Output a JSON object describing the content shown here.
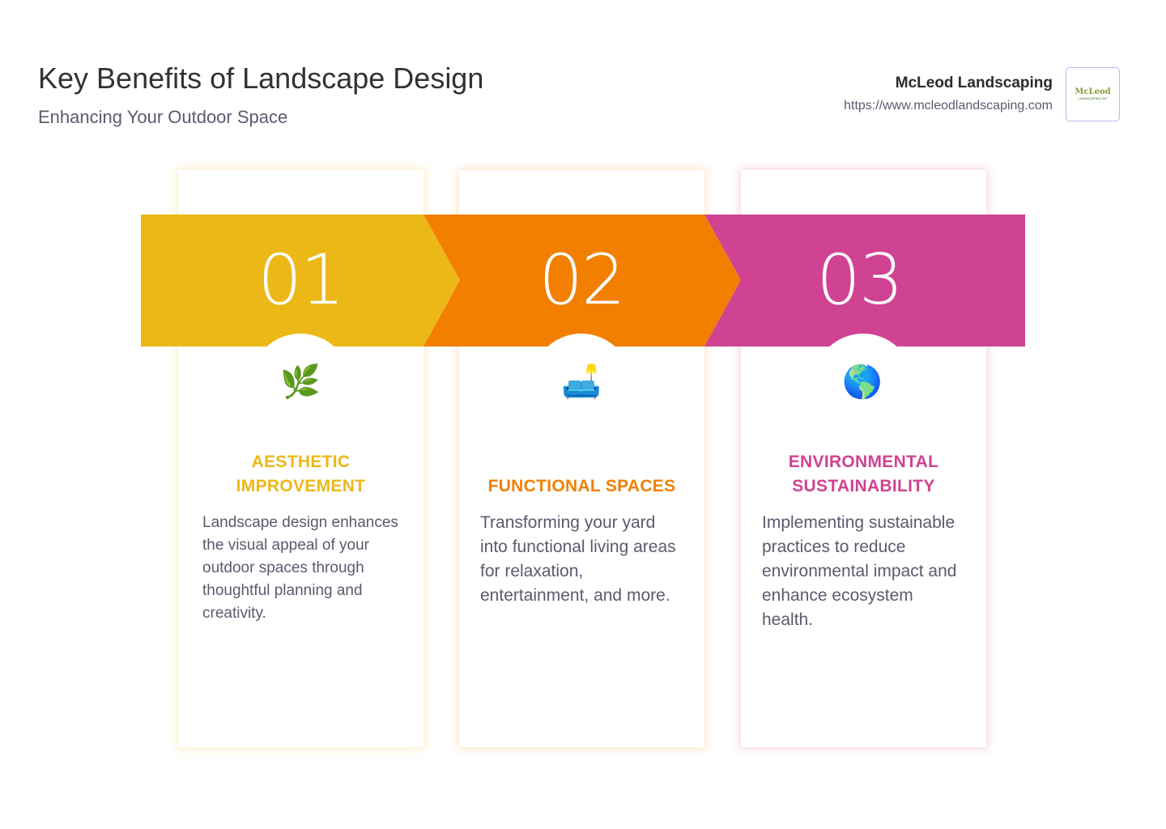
{
  "header": {
    "title": "Key Benefits of Landscape Design",
    "subtitle": "Enhancing Your Outdoor Space"
  },
  "brand": {
    "name": "McLeod Landscaping",
    "url": "https://www.mcleodlandscaping.com",
    "logo_text": "McLeod",
    "logo_subtext": "LANDSCAPING INC"
  },
  "colors": {
    "yellow": "#EBB818",
    "orange": "#F27F00",
    "magenta": "#D04292"
  },
  "items": [
    {
      "number": "01",
      "icon": "herb-icon",
      "emoji": "🌿",
      "heading": "AESTHETIC IMPROVEMENT",
      "description": "Landscape design enhances the visual appeal of your outdoor spaces through thoughtful planning and creativity."
    },
    {
      "number": "02",
      "icon": "couch-and-lamp-icon",
      "emoji": "🛋️",
      "heading": "FUNCTIONAL SPACES",
      "description": "Transforming your yard into functional living areas for relaxation, entertainment, and more."
    },
    {
      "number": "03",
      "icon": "globe-americas-icon",
      "emoji": "🌎",
      "heading": "ENVIRONMENTAL SUSTAINABILITY",
      "description": "Implementing sustainable practices to reduce environmental impact and enhance ecosystem health."
    }
  ]
}
